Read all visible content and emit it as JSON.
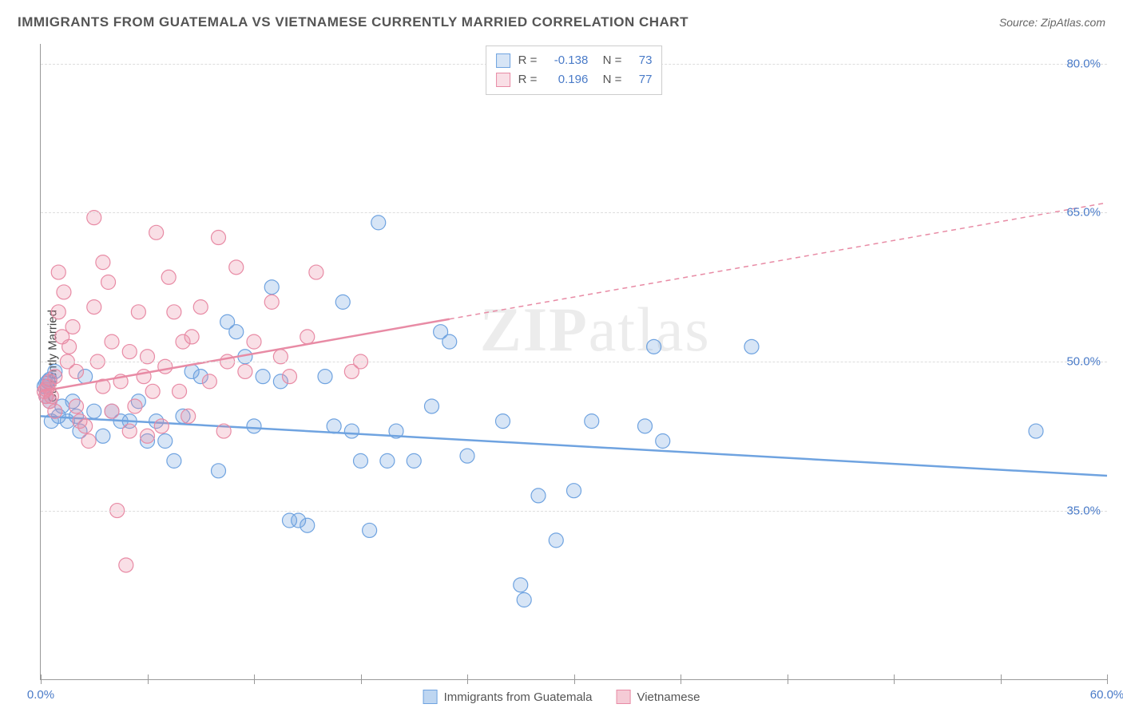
{
  "title": "IMMIGRANTS FROM GUATEMALA VS VIETNAMESE CURRENTLY MARRIED CORRELATION CHART",
  "source_label": "Source: ZipAtlas.com",
  "ylabel": "Currently Married",
  "watermark": {
    "part1": "ZIP",
    "part2": "atlas"
  },
  "chart": {
    "type": "scatter",
    "xlim": [
      0,
      60
    ],
    "ylim": [
      18,
      82
    ],
    "background_color": "#ffffff",
    "grid_color": "#dddddd",
    "axis_color": "#999999",
    "tick_color": "#4a7bc8",
    "tick_fontsize": 15,
    "label_fontsize": 15,
    "marker_radius": 9,
    "marker_fill_opacity": 0.28,
    "marker_stroke_width": 1.2,
    "yticks": [
      {
        "value": 35.0,
        "label": "35.0%"
      },
      {
        "value": 50.0,
        "label": "50.0%"
      },
      {
        "value": 65.0,
        "label": "65.0%"
      },
      {
        "value": 80.0,
        "label": "80.0%"
      }
    ],
    "xticks": [
      {
        "value": 0.0,
        "label": "0.0%"
      },
      {
        "value": 60.0,
        "label": "60.0%"
      }
    ],
    "xtick_marks": [
      0,
      6,
      12,
      18,
      24,
      30,
      36,
      42,
      48,
      54,
      60
    ],
    "series": [
      {
        "name": "Immigrants from Guatemala",
        "color": "#6fa3e0",
        "fill": "rgba(111,163,224,0.28)",
        "correlation_R": "-0.138",
        "correlation_N": "73",
        "regression": {
          "x1": 0,
          "y1": 44.5,
          "x2": 60,
          "y2": 38.5,
          "solid_to_x": 60,
          "dash_from_x": 60
        },
        "points": [
          [
            0.2,
            47.5
          ],
          [
            0.3,
            47.8
          ],
          [
            0.4,
            48.0
          ],
          [
            0.3,
            46.5
          ],
          [
            0.5,
            46.0
          ],
          [
            0.5,
            48.2
          ],
          [
            0.8,
            49.0
          ],
          [
            0.6,
            44.0
          ],
          [
            1.0,
            44.5
          ],
          [
            1.2,
            45.5
          ],
          [
            1.5,
            44.0
          ],
          [
            1.8,
            46.0
          ],
          [
            2.0,
            44.5
          ],
          [
            2.2,
            43.0
          ],
          [
            2.5,
            48.5
          ],
          [
            3.0,
            45.0
          ],
          [
            3.5,
            42.5
          ],
          [
            4.0,
            45.0
          ],
          [
            4.5,
            44.0
          ],
          [
            5.0,
            44.0
          ],
          [
            5.5,
            46.0
          ],
          [
            6.0,
            42.0
          ],
          [
            6.5,
            44.0
          ],
          [
            7.0,
            42.0
          ],
          [
            7.5,
            40.0
          ],
          [
            8.0,
            44.5
          ],
          [
            8.5,
            49.0
          ],
          [
            9.0,
            48.5
          ],
          [
            10.0,
            39.0
          ],
          [
            10.5,
            54.0
          ],
          [
            11.0,
            53.0
          ],
          [
            11.5,
            50.5
          ],
          [
            12.0,
            43.5
          ],
          [
            12.5,
            48.5
          ],
          [
            13.0,
            57.5
          ],
          [
            13.5,
            48.0
          ],
          [
            14.0,
            34.0
          ],
          [
            14.5,
            34.0
          ],
          [
            15.0,
            33.5
          ],
          [
            16.0,
            48.5
          ],
          [
            16.5,
            43.5
          ],
          [
            17.0,
            56.0
          ],
          [
            17.5,
            43.0
          ],
          [
            18.0,
            40.0
          ],
          [
            18.5,
            33.0
          ],
          [
            19.0,
            64.0
          ],
          [
            19.5,
            40.0
          ],
          [
            20.0,
            43.0
          ],
          [
            21.0,
            40.0
          ],
          [
            22.0,
            45.5
          ],
          [
            22.5,
            53.0
          ],
          [
            23.0,
            52.0
          ],
          [
            24.0,
            40.5
          ],
          [
            26.0,
            44.0
          ],
          [
            27.0,
            27.5
          ],
          [
            27.2,
            26.0
          ],
          [
            28.0,
            36.5
          ],
          [
            29.0,
            32.0
          ],
          [
            30.0,
            37.0
          ],
          [
            31.0,
            44.0
          ],
          [
            34.0,
            43.5
          ],
          [
            34.5,
            51.5
          ],
          [
            35.0,
            42.0
          ],
          [
            40.0,
            51.5
          ],
          [
            56.0,
            43.0
          ]
        ]
      },
      {
        "name": "Vietnamese",
        "color": "#e88ba5",
        "fill": "rgba(232,139,165,0.28)",
        "correlation_R": "0.196",
        "correlation_N": "77",
        "regression": {
          "x1": 0,
          "y1": 47.0,
          "x2": 60,
          "y2": 66.0,
          "solid_to_x": 23,
          "dash_from_x": 23
        },
        "points": [
          [
            0.2,
            47.0
          ],
          [
            0.3,
            47.2
          ],
          [
            0.3,
            46.5
          ],
          [
            0.4,
            47.5
          ],
          [
            0.5,
            48.0
          ],
          [
            0.5,
            46.0
          ],
          [
            0.6,
            46.5
          ],
          [
            0.8,
            48.5
          ],
          [
            0.8,
            45.0
          ],
          [
            1.0,
            55.0
          ],
          [
            1.0,
            59.0
          ],
          [
            1.2,
            52.5
          ],
          [
            1.3,
            57.0
          ],
          [
            1.5,
            50.0
          ],
          [
            1.6,
            51.5
          ],
          [
            1.8,
            53.5
          ],
          [
            2.0,
            49.0
          ],
          [
            2.0,
            45.5
          ],
          [
            2.2,
            44.0
          ],
          [
            2.5,
            43.5
          ],
          [
            2.7,
            42.0
          ],
          [
            3.0,
            55.5
          ],
          [
            3.0,
            64.5
          ],
          [
            3.2,
            50.0
          ],
          [
            3.5,
            47.5
          ],
          [
            3.5,
            60.0
          ],
          [
            3.8,
            58.0
          ],
          [
            4.0,
            45.0
          ],
          [
            4.0,
            52.0
          ],
          [
            4.3,
            35.0
          ],
          [
            4.5,
            48.0
          ],
          [
            4.8,
            29.5
          ],
          [
            5.0,
            51.0
          ],
          [
            5.0,
            43.0
          ],
          [
            5.3,
            45.5
          ],
          [
            5.5,
            55.0
          ],
          [
            5.8,
            48.5
          ],
          [
            6.0,
            50.5
          ],
          [
            6.0,
            42.5
          ],
          [
            6.3,
            47.0
          ],
          [
            6.5,
            63.0
          ],
          [
            6.8,
            43.5
          ],
          [
            7.0,
            49.5
          ],
          [
            7.2,
            58.5
          ],
          [
            7.5,
            55.0
          ],
          [
            7.8,
            47.0
          ],
          [
            8.0,
            52.0
          ],
          [
            8.3,
            44.5
          ],
          [
            8.5,
            52.5
          ],
          [
            9.0,
            55.5
          ],
          [
            9.5,
            48.0
          ],
          [
            10.0,
            62.5
          ],
          [
            10.3,
            43.0
          ],
          [
            10.5,
            50.0
          ],
          [
            11.0,
            59.5
          ],
          [
            11.5,
            49.0
          ],
          [
            12.0,
            52.0
          ],
          [
            13.0,
            56.0
          ],
          [
            13.5,
            50.5
          ],
          [
            14.0,
            48.5
          ],
          [
            15.0,
            52.5
          ],
          [
            15.5,
            59.0
          ],
          [
            17.5,
            49.0
          ],
          [
            18.0,
            50.0
          ]
        ]
      }
    ]
  },
  "corr_legend_labels": {
    "R_prefix": "R = ",
    "N_prefix": "N = "
  },
  "bottom_legend": [
    {
      "label": "Immigrants from Guatemala",
      "color": "#6fa3e0",
      "fill": "rgba(111,163,224,0.45)"
    },
    {
      "label": "Vietnamese",
      "color": "#e88ba5",
      "fill": "rgba(232,139,165,0.45)"
    }
  ]
}
